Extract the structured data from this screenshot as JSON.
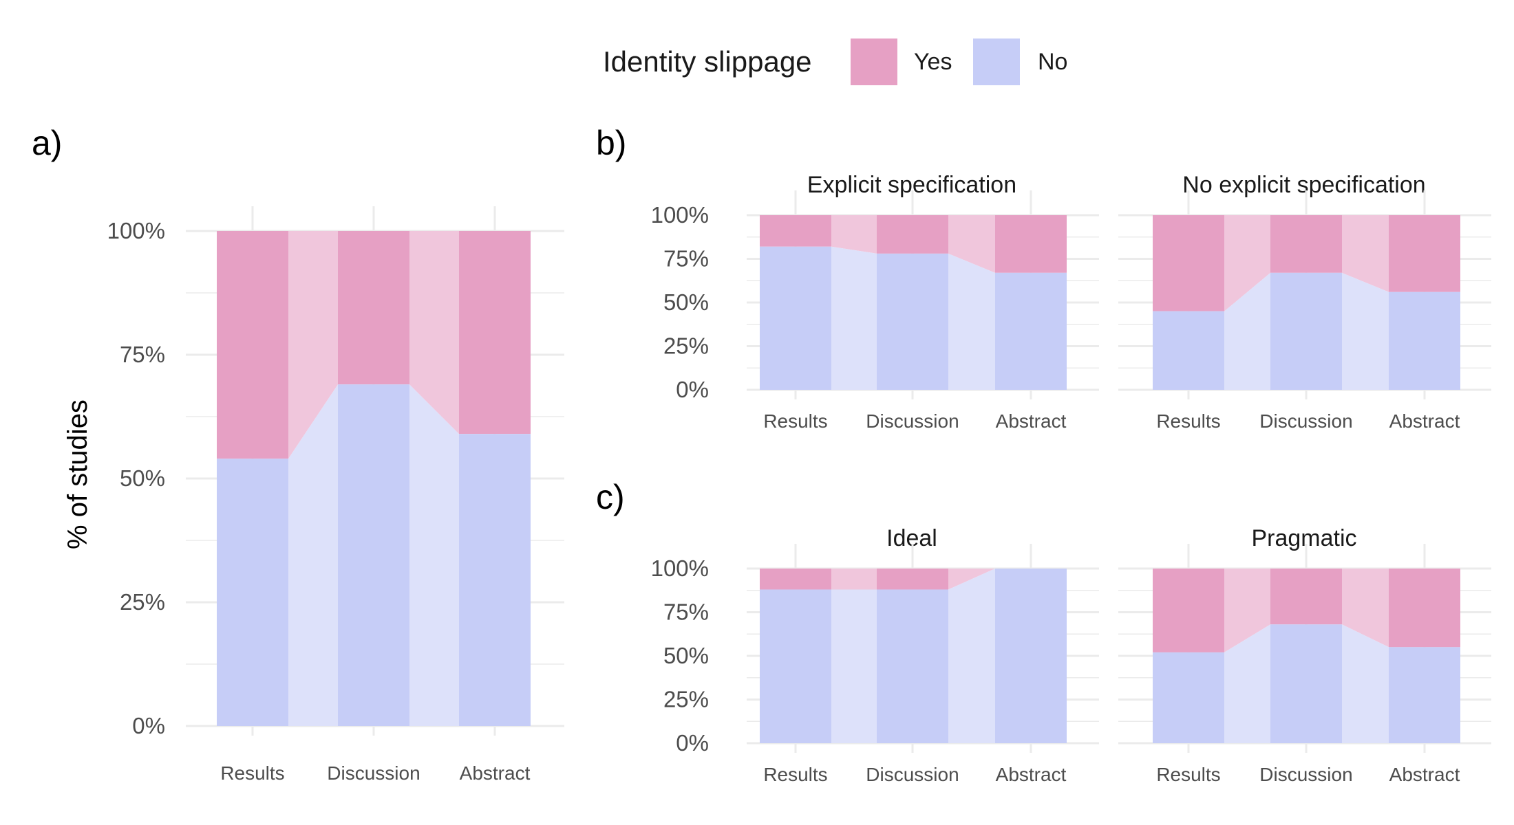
{
  "legend": {
    "title": "Identity slippage",
    "items": [
      {
        "label": "Yes",
        "color": "#e6a0c4"
      },
      {
        "label": "No",
        "color": "#c6cdf7"
      }
    ]
  },
  "colors": {
    "yes": "#e6a0c4",
    "no": "#c6cdf7",
    "yes_flow": "#f0c6dc",
    "no_flow": "#dde1fa",
    "grid": "#ebebeb"
  },
  "chart_data": [
    {
      "type": "bar",
      "stacked": true,
      "percent": true,
      "tag": "a)",
      "title": "",
      "ylabel": "% of studies",
      "xlabel": "",
      "categories": [
        "Results",
        "Discussion",
        "Abstract"
      ],
      "ylim": [
        0,
        100
      ],
      "yticks": [
        "0%",
        "25%",
        "50%",
        "75%",
        "100%"
      ],
      "series": [
        {
          "name": "Yes",
          "values": [
            46,
            31,
            41
          ]
        },
        {
          "name": "No",
          "values": [
            54,
            69,
            59
          ]
        }
      ]
    },
    {
      "type": "bar",
      "stacked": true,
      "percent": true,
      "tag": "b)",
      "title": "Explicit specification",
      "categories": [
        "Results",
        "Discussion",
        "Abstract"
      ],
      "ylim": [
        0,
        100
      ],
      "yticks": [
        "0%",
        "25%",
        "50%",
        "75%",
        "100%"
      ],
      "series": [
        {
          "name": "Yes",
          "values": [
            18,
            22,
            33
          ]
        },
        {
          "name": "No",
          "values": [
            82,
            78,
            67
          ]
        }
      ]
    },
    {
      "type": "bar",
      "stacked": true,
      "percent": true,
      "tag": "",
      "title": "No explicit specification",
      "categories": [
        "Results",
        "Discussion",
        "Abstract"
      ],
      "ylim": [
        0,
        100
      ],
      "yticks": [
        "0%",
        "25%",
        "50%",
        "75%",
        "100%"
      ],
      "series": [
        {
          "name": "Yes",
          "values": [
            55,
            33,
            44
          ]
        },
        {
          "name": "No",
          "values": [
            45,
            67,
            56
          ]
        }
      ]
    },
    {
      "type": "bar",
      "stacked": true,
      "percent": true,
      "tag": "c)",
      "title": "Ideal",
      "categories": [
        "Results",
        "Discussion",
        "Abstract"
      ],
      "ylim": [
        0,
        100
      ],
      "yticks": [
        "0%",
        "25%",
        "50%",
        "75%",
        "100%"
      ],
      "series": [
        {
          "name": "Yes",
          "values": [
            12,
            12,
            0
          ]
        },
        {
          "name": "No",
          "values": [
            88,
            88,
            100
          ]
        }
      ]
    },
    {
      "type": "bar",
      "stacked": true,
      "percent": true,
      "tag": "",
      "title": "Pragmatic",
      "categories": [
        "Results",
        "Discussion",
        "Abstract"
      ],
      "ylim": [
        0,
        100
      ],
      "yticks": [
        "0%",
        "25%",
        "50%",
        "75%",
        "100%"
      ],
      "series": [
        {
          "name": "Yes",
          "values": [
            48,
            32,
            45
          ]
        },
        {
          "name": "No",
          "values": [
            52,
            68,
            55
          ]
        }
      ]
    }
  ]
}
